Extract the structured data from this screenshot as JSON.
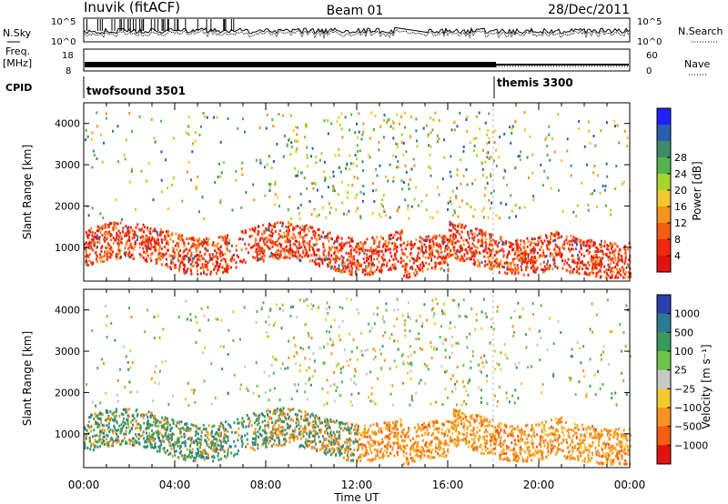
{
  "header": {
    "station": "Inuvik (fitACF)",
    "beam": "Beam 01",
    "date": "28/Dec/2011"
  },
  "noise_panel": {
    "left_label": "N.Sky",
    "right_label": "N.Search",
    "ticks": [
      "10^5",
      "10^0"
    ]
  },
  "freq_panel": {
    "left_label_1": "Freq.",
    "left_label_2": "[MHz]",
    "right_label": "Nave",
    "left_ticks": [
      "18",
      "8"
    ],
    "right_ticks": [
      "60",
      "0"
    ]
  },
  "cpid_panel": {
    "label": "CPID",
    "programs": [
      {
        "name": "twofsound 3501",
        "start_hour": 0
      },
      {
        "name": "themis 3300",
        "start_hour": 18
      }
    ]
  },
  "chart_data": [
    {
      "type": "heatmap",
      "name": "power-panel",
      "ylabel": "Slant Range [km]",
      "xlabel": "Time UT",
      "xlim": [
        0,
        24
      ],
      "ylim": [
        180,
        4500
      ],
      "x_ticks": [
        "00:00",
        "04:00",
        "08:00",
        "12:00",
        "16:00",
        "20:00",
        "00:00"
      ],
      "y_ticks": [
        1000,
        2000,
        3000,
        4000
      ],
      "colorbar": {
        "label": "Power [dB]",
        "tick_labels": [
          "4",
          "8",
          "12",
          "16",
          "20",
          "24",
          "28"
        ],
        "colors": [
          "#1f1fff",
          "#2a5fb0",
          "#3d8c6a",
          "#55b34f",
          "#a8d42c",
          "#f2c92e",
          "#f6921e",
          "#f45d13",
          "#ef2a10",
          "#e0140e"
        ]
      }
    },
    {
      "type": "heatmap",
      "name": "velocity-panel",
      "ylabel": "Slant Range [km]",
      "xlabel": "Time UT",
      "xlim": [
        0,
        24
      ],
      "ylim": [
        180,
        4500
      ],
      "x_ticks": [
        "00:00",
        "04:00",
        "08:00",
        "12:00",
        "16:00",
        "20:00",
        "00:00"
      ],
      "y_ticks": [
        1000,
        2000,
        3000,
        4000
      ],
      "colorbar": {
        "label": "Velocity [m s⁻¹]",
        "tick_labels": [
          "1000",
          "500",
          "100",
          "25",
          "−25",
          "−100",
          "−500",
          "−1000"
        ],
        "colors": [
          "#2b3fae",
          "#2d7a94",
          "#3a9a5a",
          "#6cc44a",
          "#c8c8c8",
          "#f2c92e",
          "#f6921e",
          "#f45d13",
          "#e0140e"
        ]
      }
    }
  ],
  "xaxis": {
    "label": "Time UT",
    "ticks": [
      "00:00",
      "04:00",
      "08:00",
      "12:00",
      "16:00",
      "20:00",
      "00:00"
    ]
  }
}
